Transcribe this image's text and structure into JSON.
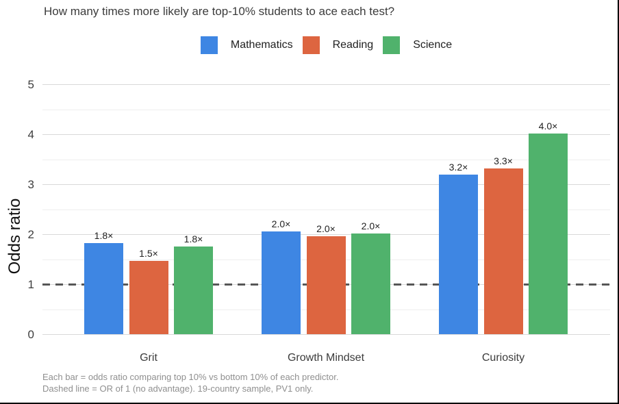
{
  "header": {
    "title": "How many times more likely are top-10% students to ace each test?"
  },
  "chart_data": {
    "type": "bar",
    "title": "How many times more likely are top-10% students to ace each test?",
    "categories": [
      "Grit",
      "Growth Mindset",
      "Curiosity"
    ],
    "series": [
      {
        "name": "Mathematics",
        "color": "#3E86E3",
        "values": [
          1.82,
          2.05,
          3.19
        ],
        "labels": [
          "1.8×",
          "2.0×",
          "3.2×"
        ]
      },
      {
        "name": "Reading",
        "color": "#DD6540",
        "values": [
          1.47,
          1.96,
          3.31
        ],
        "labels": [
          "1.5×",
          "2.0×",
          "3.3×"
        ]
      },
      {
        "name": "Science",
        "color": "#50B26C",
        "values": [
          1.76,
          2.01,
          4.02
        ],
        "labels": [
          "1.8×",
          "2.0×",
          "4.0×"
        ]
      }
    ],
    "xlabel": "",
    "ylabel": "Odds ratio",
    "ylim": [
      0,
      5
    ],
    "yticks": [
      0,
      1,
      2,
      3,
      4,
      5
    ],
    "minor_gridlines": true,
    "grid": true,
    "legend_position": "top",
    "reference_line": {
      "y": 1,
      "style": "dashed",
      "color": "#565656"
    }
  },
  "footer": {
    "line1": "Each bar = odds ratio comparing top 10% vs bottom 10% of each predictor.",
    "line2": "Dashed line = OR of 1 (no advantage). 19-country sample, PV1 only."
  }
}
